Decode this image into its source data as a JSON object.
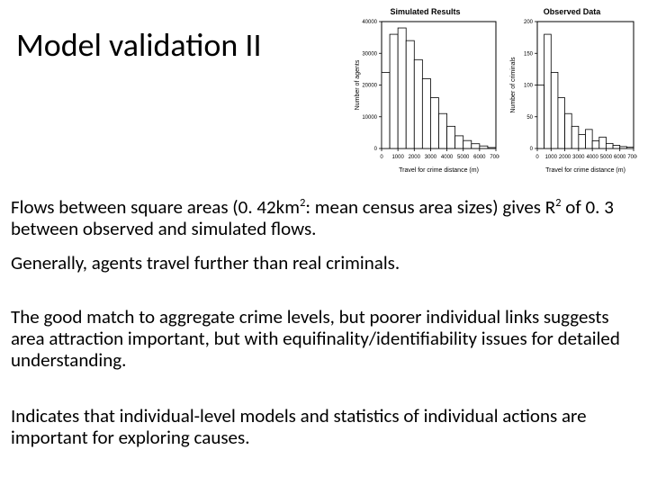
{
  "title": "Model validation II",
  "paragraphs": {
    "p1a": "Flows between square areas (0. 42km",
    "p1b": ": mean census area sizes) gives R",
    "p1c": " of 0. 3 between observed and simulated flows.",
    "p2": "Generally, agents travel further than real criminals.",
    "p3": "The good match to aggregate crime levels, but poorer individual links suggests area attraction important, but with equifinality/identifiability issues for detailed understanding.",
    "p4": "Indicates that individual-level models and statistics of individual actions are important for exploring causes.",
    "sup": "2"
  },
  "chart_left": {
    "title": "Simulated Results",
    "type": "histogram",
    "width": 165,
    "height": 175,
    "xlabel": "Travel for crime distance (m)",
    "ylabel": "Number of agents",
    "xlim": [
      0,
      7000
    ],
    "ylim": [
      0,
      40000
    ],
    "xtick_step": 1000,
    "ytick_labels": [
      "0",
      "10000",
      "20000",
      "30000",
      "40000"
    ],
    "ytick_values": [
      0,
      10000,
      20000,
      30000,
      40000
    ],
    "bar_color": "#ffffff",
    "bar_border": "#000000",
    "background_color": "#ffffff",
    "axis_color": "#000000",
    "label_fontsize": 7,
    "tick_fontsize": 6,
    "bins": [
      {
        "x": 0,
        "count": 24000
      },
      {
        "x": 500,
        "count": 36000
      },
      {
        "x": 1000,
        "count": 38000
      },
      {
        "x": 1500,
        "count": 34000
      },
      {
        "x": 2000,
        "count": 28000
      },
      {
        "x": 2500,
        "count": 22000
      },
      {
        "x": 3000,
        "count": 16000
      },
      {
        "x": 3500,
        "count": 11000
      },
      {
        "x": 4000,
        "count": 7000
      },
      {
        "x": 4500,
        "count": 4000
      },
      {
        "x": 5000,
        "count": 2500
      },
      {
        "x": 5500,
        "count": 1500
      },
      {
        "x": 6000,
        "count": 800
      },
      {
        "x": 6500,
        "count": 300
      }
    ]
  },
  "chart_right": {
    "title": "Observed Data",
    "type": "histogram",
    "width": 145,
    "height": 175,
    "xlabel": "Travel for crime distance (m)",
    "ylabel": "Number of criminals",
    "xlim": [
      0,
      7000
    ],
    "ylim": [
      0,
      200
    ],
    "xtick_step": 1000,
    "ytick_labels": [
      "0",
      "50",
      "100",
      "150",
      "200"
    ],
    "ytick_values": [
      0,
      50,
      100,
      150,
      200
    ],
    "bar_color": "#ffffff",
    "bar_border": "#000000",
    "background_color": "#ffffff",
    "axis_color": "#000000",
    "label_fontsize": 7,
    "tick_fontsize": 6,
    "bins": [
      {
        "x": 0,
        "count": 100
      },
      {
        "x": 500,
        "count": 180
      },
      {
        "x": 1000,
        "count": 120
      },
      {
        "x": 1500,
        "count": 80
      },
      {
        "x": 2000,
        "count": 55
      },
      {
        "x": 2500,
        "count": 35
      },
      {
        "x": 3000,
        "count": 22
      },
      {
        "x": 3500,
        "count": 30
      },
      {
        "x": 4000,
        "count": 12
      },
      {
        "x": 4500,
        "count": 18
      },
      {
        "x": 5000,
        "count": 8
      },
      {
        "x": 5500,
        "count": 5
      },
      {
        "x": 6000,
        "count": 3
      },
      {
        "x": 6500,
        "count": 2
      }
    ]
  }
}
